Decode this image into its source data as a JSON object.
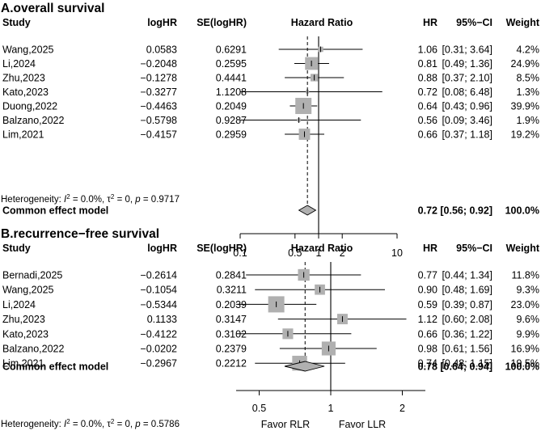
{
  "chart_data": [
    {
      "type": "forest",
      "title": "A.overall survival",
      "headers": {
        "study": "Study",
        "loghr": "logHR",
        "se": "SE(logHR)",
        "plot": "Hazard Ratio",
        "hr": "HR",
        "ci": "95%−CI",
        "weight": "Weight"
      },
      "studies": [
        {
          "study": "Wang,2025",
          "loghr": "0.0583",
          "se": "0.6291",
          "hr_text": "1.06",
          "ci_text": "[0.31; 3.64]",
          "weight_text": "4.2%",
          "hr": 1.06,
          "lower": 0.31,
          "upper": 3.64,
          "weight": 4.2
        },
        {
          "study": "Li,2024",
          "loghr": "−0.2048",
          "se": "0.2595",
          "hr_text": "0.81",
          "ci_text": "[0.49; 1.36]",
          "weight_text": "24.9%",
          "hr": 0.81,
          "lower": 0.49,
          "upper": 1.36,
          "weight": 24.9
        },
        {
          "study": "Zhu,2023",
          "loghr": "−0.1278",
          "se": "0.4441",
          "hr_text": "0.88",
          "ci_text": "[0.37; 2.10]",
          "weight_text": "8.5%",
          "hr": 0.88,
          "lower": 0.37,
          "upper": 2.1,
          "weight": 8.5
        },
        {
          "study": "Kato,2023",
          "loghr": "−0.3277",
          "se": "1.1208",
          "hr_text": "0.72",
          "ci_text": "[0.08; 6.48]",
          "weight_text": "1.3%",
          "hr": 0.72,
          "lower": 0.08,
          "upper": 6.48,
          "weight": 1.3
        },
        {
          "study": "Duong,2022",
          "loghr": "−0.4463",
          "se": "0.2049",
          "hr_text": "0.64",
          "ci_text": "[0.43; 0.96]",
          "weight_text": "39.9%",
          "hr": 0.64,
          "lower": 0.43,
          "upper": 0.96,
          "weight": 39.9
        },
        {
          "study": "Balzano,2022",
          "loghr": "−0.5798",
          "se": "0.9287",
          "hr_text": "0.56",
          "ci_text": "[0.09; 3.46]",
          "weight_text": "1.9%",
          "hr": 0.56,
          "lower": 0.09,
          "upper": 3.46,
          "weight": 1.9
        },
        {
          "study": "Lim,2021",
          "loghr": "−0.4157",
          "se": "0.2959",
          "hr_text": "0.66",
          "ci_text": "[0.37; 1.18]",
          "weight_text": "19.2%",
          "hr": 0.66,
          "lower": 0.37,
          "upper": 1.18,
          "weight": 19.2
        }
      ],
      "pooled": {
        "label": "Common effect model",
        "hr_text": "0.72",
        "ci_text": "[0.56; 0.92]",
        "weight_text": "100.0%",
        "hr": 0.72,
        "lower": 0.56,
        "upper": 0.92
      },
      "axis": {
        "scale": "log",
        "xlim": [
          0.1,
          10
        ],
        "ticks": [
          0.1,
          0.5,
          1,
          2,
          10
        ],
        "tick_labels": [
          "0.1",
          "0.5",
          "1",
          "2",
          "10"
        ],
        "reference": 1
      },
      "heterogeneity": {
        "prefix": "Heterogeneity: ",
        "i2_symbol": "I",
        "i2_value": " = 0.0%, ",
        "tau_symbol": "τ",
        "tau_value": " = 0, ",
        "p_symbol": "p",
        "p_value": " = 0.9717"
      },
      "favor": {
        "left": "",
        "right": ""
      }
    },
    {
      "type": "forest",
      "title": "B.recurrence−free survival",
      "headers": {
        "study": "Study",
        "loghr": "logHR",
        "se": "SE(logHR)",
        "plot": "Hazard Ratio",
        "hr": "HR",
        "ci": "95%−CI",
        "weight": "Weight"
      },
      "studies": [
        {
          "study": "Bernadi,2025",
          "loghr": "−0.2614",
          "se": "0.2841",
          "hr_text": "0.77",
          "ci_text": "[0.44; 1.34]",
          "weight_text": "11.8%",
          "hr": 0.77,
          "lower": 0.44,
          "upper": 1.34,
          "weight": 11.8
        },
        {
          "study": "Wang,2025",
          "loghr": "−0.1054",
          "se": "0.3211",
          "hr_text": "0.90",
          "ci_text": "[0.48; 1.69]",
          "weight_text": "9.3%",
          "hr": 0.9,
          "lower": 0.48,
          "upper": 1.69,
          "weight": 9.3
        },
        {
          "study": "Li,2024",
          "loghr": "−0.5344",
          "se": "0.2039",
          "hr_text": "0.59",
          "ci_text": "[0.39; 0.87]",
          "weight_text": "23.0%",
          "hr": 0.59,
          "lower": 0.39,
          "upper": 0.87,
          "weight": 23.0
        },
        {
          "study": "Zhu,2023",
          "loghr": "0.1133",
          "se": "0.3147",
          "hr_text": "1.12",
          "ci_text": "[0.60; 2.08]",
          "weight_text": "9.6%",
          "hr": 1.12,
          "lower": 0.6,
          "upper": 2.08,
          "weight": 9.6
        },
        {
          "study": "Kato,2023",
          "loghr": "−0.4122",
          "se": "0.3102",
          "hr_text": "0.66",
          "ci_text": "[0.36; 1.22]",
          "weight_text": "9.9%",
          "hr": 0.66,
          "lower": 0.36,
          "upper": 1.22,
          "weight": 9.9
        },
        {
          "study": "Balzano,2022",
          "loghr": "−0.0202",
          "se": "0.2379",
          "hr_text": "0.98",
          "ci_text": "[0.61; 1.56]",
          "weight_text": "16.9%",
          "hr": 0.98,
          "lower": 0.61,
          "upper": 1.56,
          "weight": 16.9
        },
        {
          "study": "Lim,2021",
          "loghr": "−0.2967",
          "se": "0.2212",
          "hr_text": "0.74",
          "ci_text": "[0.48; 1.15]",
          "weight_text": "19.5%",
          "hr": 0.74,
          "lower": 0.48,
          "upper": 1.15,
          "weight": 19.5
        }
      ],
      "pooled": {
        "label": "Common effect model",
        "hr_text": "0.78",
        "ci_text": "[0.64; 0.94]",
        "weight_text": "100.0%",
        "hr": 0.78,
        "lower": 0.64,
        "upper": 0.94
      },
      "axis": {
        "scale": "log",
        "xlim": [
          0.4,
          2.5
        ],
        "ticks": [
          0.5,
          1,
          2
        ],
        "tick_labels": [
          "0.5",
          "1",
          "2"
        ],
        "reference": 1
      },
      "heterogeneity": {
        "prefix": "Heterogeneity: ",
        "i2_symbol": "I",
        "i2_value": " = 0.0%, ",
        "tau_symbol": "τ",
        "tau_value": " = 0, ",
        "p_symbol": "p",
        "p_value": " = 0.5786"
      },
      "favor": {
        "left": "Favor RLR",
        "right": "Favor LLR"
      }
    }
  ]
}
